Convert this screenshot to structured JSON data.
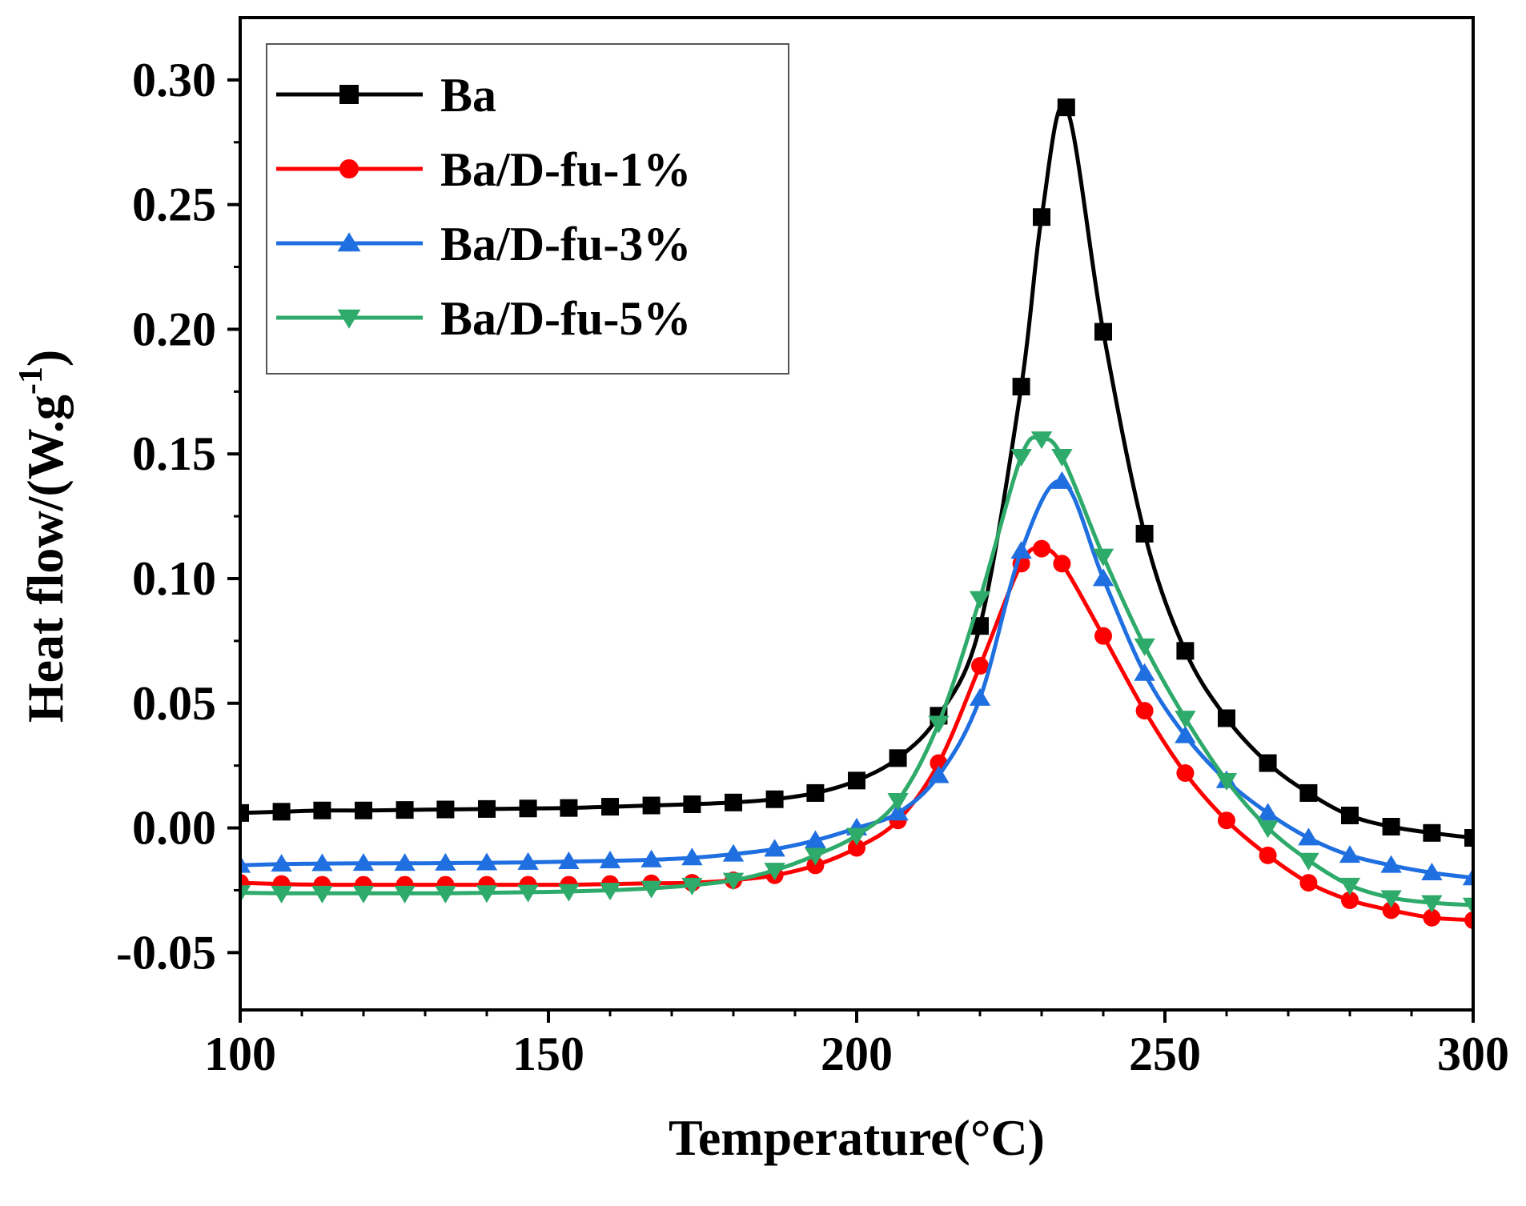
{
  "chart_data": {
    "type": "line",
    "title": "",
    "xlabel": "Temperature(°C)",
    "ylabel_main": "Heat flow/(W.g",
    "ylabel_sup": "-1",
    "ylabel_close": ")",
    "xlim": [
      100,
      300
    ],
    "ylim": [
      -0.073,
      0.325
    ],
    "xticks": [
      100,
      150,
      200,
      250,
      300
    ],
    "yticks": [
      -0.05,
      0.0,
      0.05,
      0.1,
      0.15,
      0.2,
      0.25,
      0.3
    ],
    "xtick_labels": [
      "100",
      "150",
      "200",
      "250",
      "300"
    ],
    "ytick_labels": [
      "-0.05",
      "0.00",
      "0.05",
      "0.10",
      "0.15",
      "0.20",
      "0.25",
      "0.30"
    ],
    "grid": false,
    "legend_position": "top-left",
    "series": [
      {
        "name": "Ba",
        "color": "#000000",
        "marker": "square",
        "x": [
          100,
          106.7,
          113.3,
          120,
          126.7,
          133.3,
          140,
          146.7,
          153.3,
          160,
          166.7,
          173.3,
          180,
          186.7,
          193.3,
          200,
          206.7,
          213.3,
          220,
          226.7,
          230,
          234,
          240,
          246.7,
          253.3,
          260,
          266.7,
          273.3,
          280,
          286.7,
          293.3,
          300
        ],
        "y": [
          0.006,
          0.0065,
          0.007,
          0.007,
          0.0072,
          0.0074,
          0.0076,
          0.0078,
          0.008,
          0.0085,
          0.009,
          0.0095,
          0.0102,
          0.0115,
          0.014,
          0.019,
          0.028,
          0.045,
          0.081,
          0.177,
          0.245,
          0.289,
          0.199,
          0.118,
          0.071,
          0.044,
          0.026,
          0.014,
          0.005,
          0.0005,
          -0.002,
          -0.004
        ]
      },
      {
        "name": "Ba/D-fu-1%",
        "color": "#ff0000",
        "marker": "circle",
        "x": [
          100,
          106.7,
          113.3,
          120,
          126.7,
          133.3,
          140,
          146.7,
          153.3,
          160,
          166.7,
          173.3,
          180,
          186.7,
          193.3,
          200,
          206.7,
          213.3,
          220,
          226.7,
          230,
          233.3,
          240,
          246.7,
          253.3,
          260,
          266.7,
          273.3,
          280,
          286.7,
          293.3,
          300
        ],
        "y": [
          -0.022,
          -0.0225,
          -0.0228,
          -0.0228,
          -0.0228,
          -0.0228,
          -0.0228,
          -0.0228,
          -0.0228,
          -0.0225,
          -0.0222,
          -0.022,
          -0.021,
          -0.019,
          -0.015,
          -0.008,
          0.003,
          0.026,
          0.065,
          0.106,
          0.112,
          0.106,
          0.077,
          0.047,
          0.022,
          0.003,
          -0.011,
          -0.022,
          -0.029,
          -0.033,
          -0.036,
          -0.037
        ]
      },
      {
        "name": "Ba/D-fu-3%",
        "color": "#1f6fe0",
        "marker": "triangle-up",
        "x": [
          100,
          106.7,
          113.3,
          120,
          126.7,
          133.3,
          140,
          146.7,
          153.3,
          160,
          166.7,
          173.3,
          180,
          186.7,
          193.3,
          200,
          206.7,
          213.3,
          220,
          226.7,
          233.3,
          240,
          246.7,
          253.3,
          260,
          266.7,
          273.3,
          280,
          286.7,
          293.3,
          300
        ],
        "y": [
          -0.015,
          -0.0145,
          -0.0143,
          -0.0142,
          -0.0142,
          -0.0141,
          -0.014,
          -0.0138,
          -0.0135,
          -0.0132,
          -0.0128,
          -0.012,
          -0.0105,
          -0.0085,
          -0.005,
          0.0,
          0.006,
          0.021,
          0.052,
          0.111,
          0.139,
          0.1,
          0.062,
          0.037,
          0.019,
          0.006,
          -0.004,
          -0.011,
          -0.015,
          -0.018,
          -0.02
        ]
      },
      {
        "name": "Ba/D-fu-5%",
        "color": "#2eaa6a",
        "marker": "triangle-down",
        "x": [
          100,
          106.7,
          113.3,
          120,
          126.7,
          133.3,
          140,
          146.7,
          153.3,
          160,
          166.7,
          173.3,
          180,
          186.7,
          193.3,
          200,
          206.7,
          213.3,
          220,
          226.7,
          230,
          233.3,
          240,
          246.7,
          253.3,
          260,
          266.7,
          273.3,
          280,
          286.7,
          293.3,
          300
        ],
        "y": [
          -0.026,
          -0.0262,
          -0.0262,
          -0.0262,
          -0.0262,
          -0.0262,
          -0.026,
          -0.0258,
          -0.0255,
          -0.025,
          -0.0242,
          -0.023,
          -0.021,
          -0.017,
          -0.011,
          -0.003,
          0.011,
          0.042,
          0.092,
          0.149,
          0.156,
          0.149,
          0.109,
          0.073,
          0.044,
          0.019,
          0.0,
          -0.013,
          -0.023,
          -0.028,
          -0.03,
          -0.031
        ]
      }
    ]
  }
}
